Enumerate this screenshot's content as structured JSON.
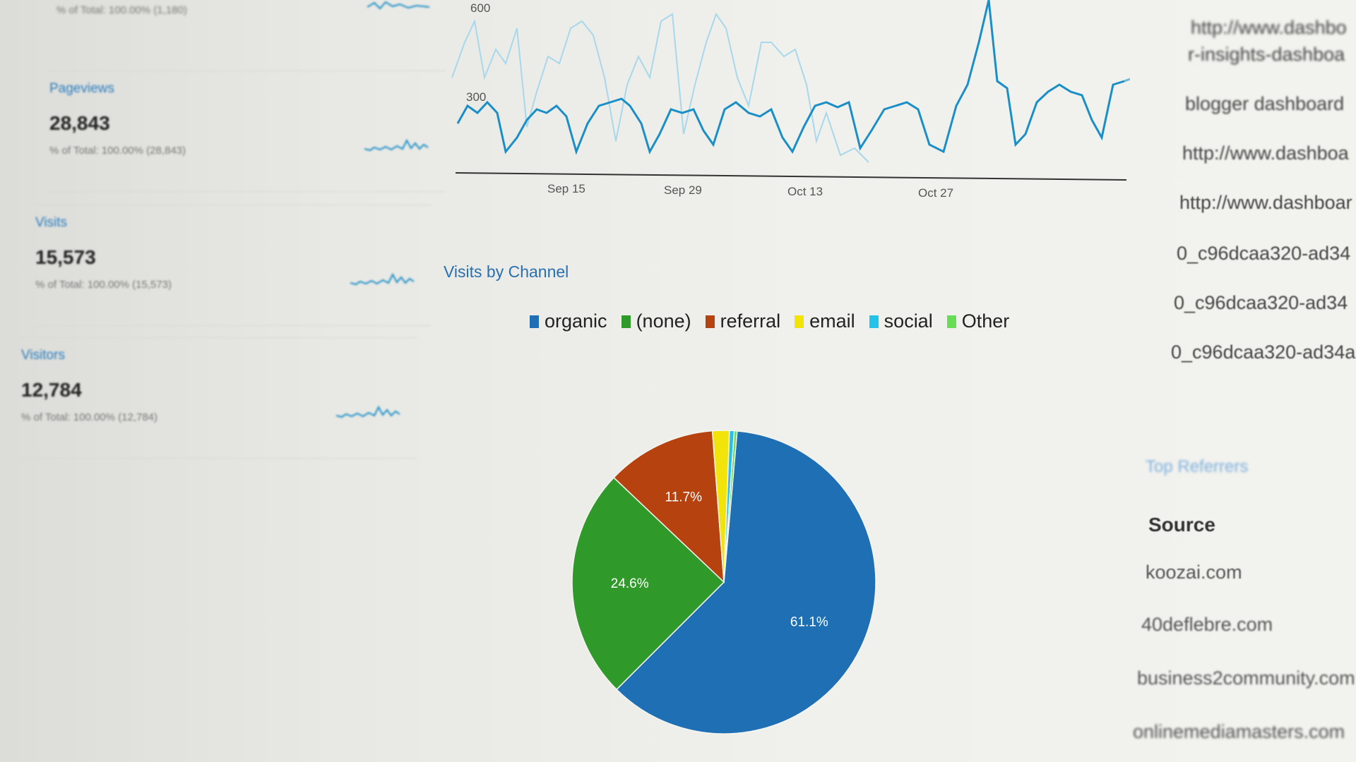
{
  "metrics_top": {
    "sub": "% of Total: 100.00% (1,180)"
  },
  "metrics": [
    {
      "label": "Pageviews",
      "value": "28,843",
      "sub_prefix": "% of Total:",
      "sub_value": "100.00% (28,843)"
    },
    {
      "label": "Visits",
      "value": "15,573",
      "sub_prefix": "% of Total:",
      "sub_value": "100.00% (15,573)"
    },
    {
      "label": "Visitors",
      "value": "12,784",
      "sub_prefix": "% of Total:",
      "sub_value": "100.00% (12,784)"
    }
  ],
  "line_chart": {
    "type": "line",
    "y_ticks": [
      "600",
      "300"
    ],
    "x_ticks": [
      "Sep 15",
      "Sep 29",
      "Oct 13",
      "Oct 27"
    ],
    "colors": {
      "primary": "#1a8fc7",
      "secondary": "#9fd3ea"
    }
  },
  "chart_data": {
    "type": "pie",
    "title": "Visits by Channel",
    "slices": [
      {
        "name": "organic",
        "value": 61.1,
        "label": "61.1%",
        "color": "#1f6fb5"
      },
      {
        "name": "(none)",
        "value": 24.6,
        "label": "24.6%",
        "color": "#2f9a2a"
      },
      {
        "name": "referral",
        "value": 11.7,
        "label": "11.7%",
        "color": "#b5420f"
      },
      {
        "name": "email",
        "value": 1.8,
        "label": "",
        "color": "#f2e40a"
      },
      {
        "name": "social",
        "value": 0.5,
        "label": "",
        "color": "#22c3e8"
      },
      {
        "name": "Other",
        "value": 0.3,
        "label": "",
        "color": "#66dd55"
      }
    ]
  },
  "right_urls": [
    "http://www.dashbo",
    "r-insights-dashboa",
    "blogger dashboard",
    "http://www.dashboa",
    "http://www.dashboar",
    "0_c96dcaa320-ad34",
    "0_c96dcaa320-ad34",
    "0_c96dcaa320-ad34a"
  ],
  "referrers": {
    "title": "Top Referrers",
    "source_header": "Source",
    "sources": [
      "koozai.com",
      "40deflebre.com",
      "business2community.com",
      "onlinemediamasters.com"
    ]
  }
}
